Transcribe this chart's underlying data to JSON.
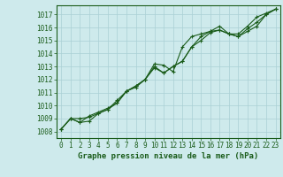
{
  "title": "Graphe pression niveau de la mer (hPa)",
  "background_color": "#ceeaec",
  "grid_color": "#aad0d4",
  "line_color": "#1a5c1a",
  "marker_color": "#1a5c1a",
  "xlim": [
    -0.5,
    23.5
  ],
  "ylim": [
    1007.5,
    1017.7
  ],
  "xticks": [
    0,
    1,
    2,
    3,
    4,
    5,
    6,
    7,
    8,
    9,
    10,
    11,
    12,
    13,
    14,
    15,
    16,
    17,
    18,
    19,
    20,
    21,
    22,
    23
  ],
  "yticks": [
    1008,
    1009,
    1010,
    1011,
    1012,
    1013,
    1014,
    1015,
    1016,
    1017
  ],
  "series": [
    [
      1008.2,
      1009.0,
      1009.0,
      1009.1,
      1009.4,
      1009.7,
      1010.4,
      1011.1,
      1011.4,
      1012.0,
      1013.2,
      1013.1,
      1012.6,
      1014.5,
      1015.3,
      1015.5,
      1015.7,
      1016.1,
      1015.5,
      1015.5,
      1016.1,
      1016.8,
      1017.1,
      1017.4
    ],
    [
      1008.2,
      1009.0,
      1008.7,
      1009.2,
      1009.5,
      1009.8,
      1010.2,
      1011.1,
      1011.5,
      1012.0,
      1013.0,
      1012.5,
      1013.0,
      1013.4,
      1014.5,
      1015.0,
      1015.6,
      1015.8,
      1015.5,
      1015.3,
      1015.7,
      1016.1,
      1017.0,
      1017.4
    ],
    [
      1008.2,
      1009.0,
      1008.7,
      1008.8,
      1009.4,
      1009.7,
      1010.2,
      1011.1,
      1011.5,
      1012.0,
      1012.9,
      1012.5,
      1013.0,
      1013.4,
      1014.5,
      1015.3,
      1015.7,
      1015.8,
      1015.5,
      1015.3,
      1015.9,
      1016.4,
      1017.0,
      1017.4
    ]
  ],
  "xlabel_fontsize": 5.5,
  "ylabel_fontsize": 5.5,
  "title_fontsize": 6.5
}
